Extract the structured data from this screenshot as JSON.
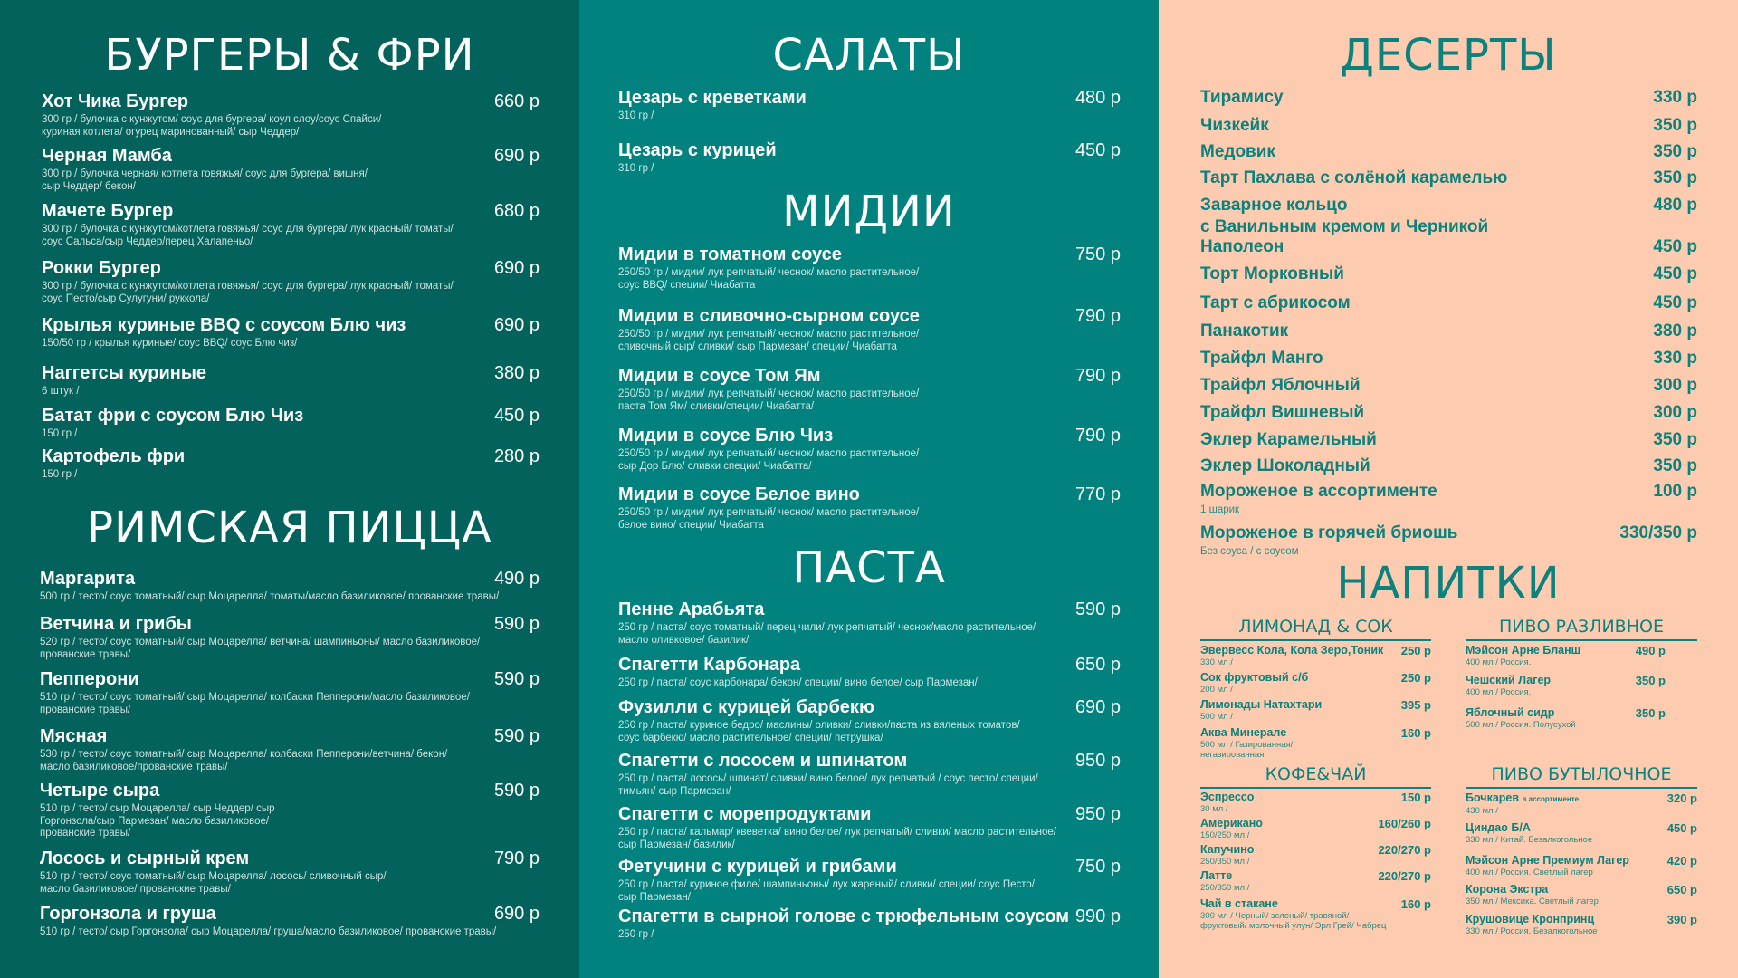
{
  "colors": {
    "left_bg": "#03625b",
    "middle_bg": "#02827e",
    "right_bg": "#fccbb0",
    "right_text": "#0b827d"
  },
  "burgers": {
    "title": "БУРГЕРЫ & ФРИ",
    "items": [
      {
        "name": "Хот Чика Бургер",
        "price": "660 р",
        "desc": "300 гр / булочка с кунжутом/ соус для бургера/ коул слоу/соус Спайси/\nкуриная котлета/ огурец маринованный/ сыр Чеддер/"
      },
      {
        "name": "Черная Мамба",
        "price": "690 р",
        "desc": "300 гр / булочка черная/ котлета говяжья/ соус для бургера/ вишня/\nсыр Чеддер/ бекон/"
      },
      {
        "name": "Мачете Бургер",
        "price": "680 р",
        "desc": "300 гр / булочка с кунжутом/котлета говяжья/ соус для бургера/ лук красный/ томаты/\nсоус Сальса/сыр Чеддер/перец Халапеньо/"
      },
      {
        "name": "Рокки Бургер",
        "price": "690 р",
        "desc": "300 гр / булочка с кунжутом/котлета говяжья/ соус для бургера/ лук красный/ томаты/\nсоус Песто/сыр Сулугуни/ руккола/"
      },
      {
        "name": "Крылья куриные BBQ с соусом Блю чиз",
        "price": "690 р",
        "desc": "150/50 гр / крылья куриные/ соус BBQ/ соус Блю чиз/"
      },
      {
        "name": "Наггетсы куриные",
        "price": "380 р",
        "desc": "6 штук /"
      },
      {
        "name": "Батат фри с  соусом  Блю Чиз",
        "price": "450 р",
        "desc": "150 гр /"
      },
      {
        "name": "Картофель фри",
        "price": "280 р",
        "desc": "150 гр /"
      }
    ]
  },
  "pizza": {
    "title": "РИМСКАЯ ПИЦЦА",
    "items": [
      {
        "name": "Маргарита",
        "price": "490 р",
        "desc": "500 гр / тесто/ соус томатный/ сыр Моцарелла/ томаты/масло  базиликовое/ прованские травы/"
      },
      {
        "name": "Ветчина и грибы",
        "price": "590 р",
        "desc": "520 гр / тесто/ соус томатный/ сыр Моцарелла/ ветчина/ шампиньоны/ масло  базиликовое/\nпрованские травы/"
      },
      {
        "name": "Пепперони",
        "price": "590 р",
        "desc": "510 гр / тесто/ соус томатный/ сыр Моцарелла/ колбаски Пепперони/масло  базиликовое/\nпрованские травы/"
      },
      {
        "name": "Мясная",
        "price": "590 р",
        "desc": "530 гр / тесто/ соус томатный/ сыр Моцарелла/ колбаски Пепперони/ветчина/ бекон/\nмасло  базиликовое/прованские травы/"
      },
      {
        "name": "Четыре сыра",
        "price": "590 р",
        "desc": "510 гр / тесто/ сыр Моцарелла/ сыр Чеддер/ сыр\nГоргонзола/сыр Пармезан/ масло  базиликовое/\nпрованские травы/"
      },
      {
        "name": "Лосось и сырный крем",
        "price": "790 р",
        "desc": "510 гр / тесто/ соус томатный/ сыр Моцарелла/ лосось/ сливочный сыр/\nмасло  базиликовое/ прованские травы/"
      },
      {
        "name": "Горгонзола и груша",
        "price": "690 р",
        "desc": "510 гр / тесто/ сыр Горгонзола/ сыр Моцарелла/ груша/масло базиликовое/ прованские травы/"
      }
    ]
  },
  "salads": {
    "title": "САЛАТЫ",
    "items": [
      {
        "name": "Цезарь с креветками",
        "price": "480 р",
        "desc": "310 гр /"
      },
      {
        "name": "Цезарь с курицей",
        "price": "450 р",
        "desc": "310 гр /"
      }
    ]
  },
  "mussels": {
    "title": "МИДИИ",
    "items": [
      {
        "name": "Мидии в томатном соусе",
        "price": "750 р",
        "desc": "250/50 гр / мидии/ лук репчатый/ чеснок/ масло  растительное/\nсоус BBQ/ специи/ Чиабатта"
      },
      {
        "name": "Мидии в сливочно-сырном соусе",
        "price": "790 р",
        "desc": "250/50 гр / мидии/ лук репчатый/ чеснок/ масло растительное/\nсливочный сыр/ сливки/ сыр Пармезан/ специи/ Чиабатта"
      },
      {
        "name": "Мидии в соусе Том Ям",
        "price": "790 р",
        "desc": "250/50 гр / мидии/ лук репчатый/ чеснок/ масло растительное/\nпаста Том Ям/ сливки/специи/ Чиабатта/"
      },
      {
        "name": "Мидии в соусе Блю Чиз",
        "price": "790 р",
        "desc": "250/50 гр / мидии/ лук репчатый/ чеснок/ масло растительное/\nсыр Дор Блю/ сливки специи/ Чиабатта/"
      },
      {
        "name": "Мидии в соусе Белое вино",
        "price": "770 р",
        "desc": "250/50 гр / мидии/ лук репчатый/ чеснок/ масло растительное/\nбелое вино/ специи/ Чиабатта"
      }
    ]
  },
  "pasta": {
    "title": "ПАСТА",
    "items": [
      {
        "name": "Пенне Арабьята",
        "price": "590 р",
        "desc": "250 гр / паста/ соус томатный/ перец чили/ лук репчатый/ чеснок/масло растительное/\nмасло оливковое/ базилик/"
      },
      {
        "name": "Спагетти Карбонара",
        "price": "650 р",
        "desc": "250 гр / паста/ соус карбонара/ бекон/ специи/ вино белое/ сыр Пармезан/"
      },
      {
        "name": "Фузилли с курицей барбекю",
        "price": "690 р",
        "desc": "250 гр / паста/ куриное бедро/ маслины/ оливки/ сливки/паста из вяленых томатов/\nсоус барбекю/ масло растительное/ специи/ петрушка/"
      },
      {
        "name": "Спагетти с лососем и шпинатом",
        "price": "950 р",
        "desc": "250 гр / паста/ лосось/ шпинат/ сливки/ вино белое/ лук репчатый / соус песто/ специи/\nтимьян/ сыр Пармезан/"
      },
      {
        "name": "Спагетти с морепродуктами",
        "price": "950 р",
        "desc": "250 гр / паста/ кальмар/ квеветка/ вино белое/ лук репчатый/ сливки/ масло растительное/\nсыр Пармезан/ базилик/"
      },
      {
        "name": "Фетучини с курицей и грибами",
        "price": "750 р",
        "desc": "250 гр / паста/ куриное филе/ шампиньоны/ лук жареный/ сливки/ специи/ соус Песто/\nсыр Пармезан/"
      },
      {
        "name": "Спагетти в сырной голове с трюфельным соусом",
        "price": "990 р",
        "desc": "250 гр /"
      }
    ]
  },
  "desserts": {
    "title": "ДЕСЕРТЫ",
    "items": [
      {
        "name": "Тирамису",
        "price": "330 р"
      },
      {
        "name": "Чизкейк",
        "price": "350 р"
      },
      {
        "name": "Медовик",
        "price": "350 р"
      },
      {
        "name": "Тарт Пахлава с солёной карамелью",
        "price": "350 р"
      },
      {
        "name": "Заварное кольцо\nс Ванильным кремом и Черникой",
        "price": "480 р"
      },
      {
        "name": "Наполеон",
        "price": "450 р"
      },
      {
        "name": "Торт Морковный",
        "price": "450 р"
      },
      {
        "name": "Тарт с абрикосом",
        "price": "450 р"
      },
      {
        "name": "Панакотик",
        "price": "380 р"
      },
      {
        "name": "Трайфл Манго",
        "price": "330 р"
      },
      {
        "name": "Трайфл Яблочный",
        "price": "300 р"
      },
      {
        "name": "Трайфл Вишневый",
        "price": "300 р"
      },
      {
        "name": "Эклер Карамельный",
        "price": "350 р"
      },
      {
        "name": "Эклер Шоколадный",
        "price": "350 р"
      },
      {
        "name": "Мороженое в ассортименте",
        "price": "100 р",
        "desc": "1 шарик"
      },
      {
        "name": "Мороженое в горячей бриошь",
        "price": "330/350 р",
        "desc": "Без соуса / с соусом"
      }
    ]
  },
  "drinks": {
    "title": "НАПИТКИ",
    "lemonade": {
      "title": "ЛИМОНАД & СОК",
      "items": [
        {
          "name": "Эвервесс Кола, Кола Зеро,Тоник",
          "price": "250 р",
          "desc": "330 мл /"
        },
        {
          "name": "Сок фруктовый с/б",
          "price": "250 р",
          "desc": "200 мл /"
        },
        {
          "name": "Лимонады Натахтари",
          "price": "395 р",
          "desc": "500 мл /"
        },
        {
          "name": "Аква Минерале",
          "price": "160 р",
          "desc": "500 мл / Газированная/\nнегазированная"
        }
      ]
    },
    "coffee": {
      "title": "КОФЕ&ЧАЙ",
      "items": [
        {
          "name": "Эспрессо",
          "price": "150 р",
          "desc": "30 мл /"
        },
        {
          "name": "Американо",
          "price": "160/260 р",
          "desc": "150/250 мл /"
        },
        {
          "name": "Капучино",
          "price": "220/270 р",
          "desc": "250/350 мл /"
        },
        {
          "name": "Латте",
          "price": "220/270 р",
          "desc": "250/350 мл /"
        },
        {
          "name": "Чай в стакане",
          "price": "160 р",
          "desc": "300 мл / Черный/ зеленый/ травяной/\nфруктовый/ молочный улун/ Эрл Грей/ Чабрец"
        }
      ]
    },
    "draft_beer": {
      "title": "ПИВО РАЗЛИВНОЕ",
      "items": [
        {
          "name": "Мэйсон Арне  Бланш",
          "price": "490 р",
          "desc": "400 мл / Россия."
        },
        {
          "name": "Чешский Лагер",
          "price": "350 р",
          "desc": "400 мл / Россия."
        },
        {
          "name": "Яблочный сидр",
          "price": "350 р",
          "desc": "500 мл / Россия. Полусухой"
        }
      ]
    },
    "bottled_beer": {
      "title": "ПИВО БУТЫЛОЧНОЕ",
      "items": [
        {
          "name": "Бочкарев",
          "note": "в ассортименте",
          "price": "320 р",
          "desc": "430 мл /"
        },
        {
          "name": "Циндао Б/А",
          "price": "450 р",
          "desc": "330 мл / Китай. Безалкогольное"
        },
        {
          "name": "Мэйсон Арне Премиум Лагер",
          "price": "420 р",
          "desc": "400 мл / Россия. Светлый лагер"
        },
        {
          "name": "Корона Экстра",
          "price": "650 р",
          "desc": "350 мл / Мексика. Светлый лагер"
        },
        {
          "name": "Крушовице Кронпринц",
          "price": "390 р",
          "desc": "330 мл / Россия. Безалкогольное"
        }
      ]
    }
  }
}
